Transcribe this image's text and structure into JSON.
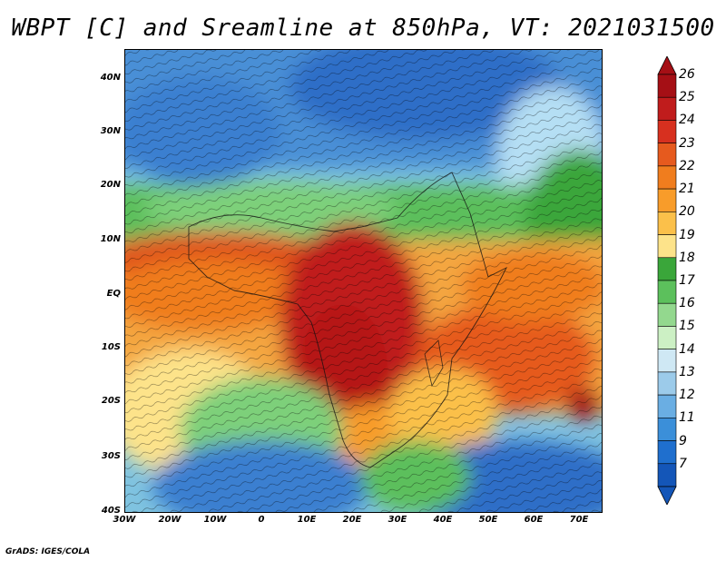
{
  "title": "WBPT [C] and Sreamline at 850hPa, VT: 2021031500",
  "credit": "GrADS: IGES/COLA",
  "lat_ticks": [
    "40N",
    "30N",
    "20N",
    "10N",
    "EQ",
    "10S",
    "20S",
    "30S",
    "40S"
  ],
  "lon_ticks": [
    "30W",
    "20W",
    "10W",
    "0",
    "10E",
    "20E",
    "30E",
    "40E",
    "50E",
    "60E",
    "70E"
  ],
  "colorbar": {
    "labels": [
      "26",
      "25",
      "24",
      "23",
      "22",
      "21",
      "20",
      "19",
      "18",
      "17",
      "16",
      "15",
      "14",
      "13",
      "12",
      "11",
      "9",
      "7"
    ],
    "colors": [
      "#a50f15",
      "#c01c1c",
      "#d7301f",
      "#e65a1e",
      "#f07d1e",
      "#f89c2a",
      "#fbc04a",
      "#fde38a",
      "#3aa63a",
      "#5cc05c",
      "#93d88e",
      "#ccf0c4",
      "#cfe8f4",
      "#9ccbea",
      "#6aaee3",
      "#3b8fd9",
      "#1f6fce",
      "#1456b8"
    ]
  },
  "map_colors": {
    "cold": "#3a7fd2",
    "cool": "#8cc2ea",
    "mild": "#6cc46a",
    "warm": "#f4a640",
    "hot": "#e0551e",
    "hottest": "#b51818"
  }
}
